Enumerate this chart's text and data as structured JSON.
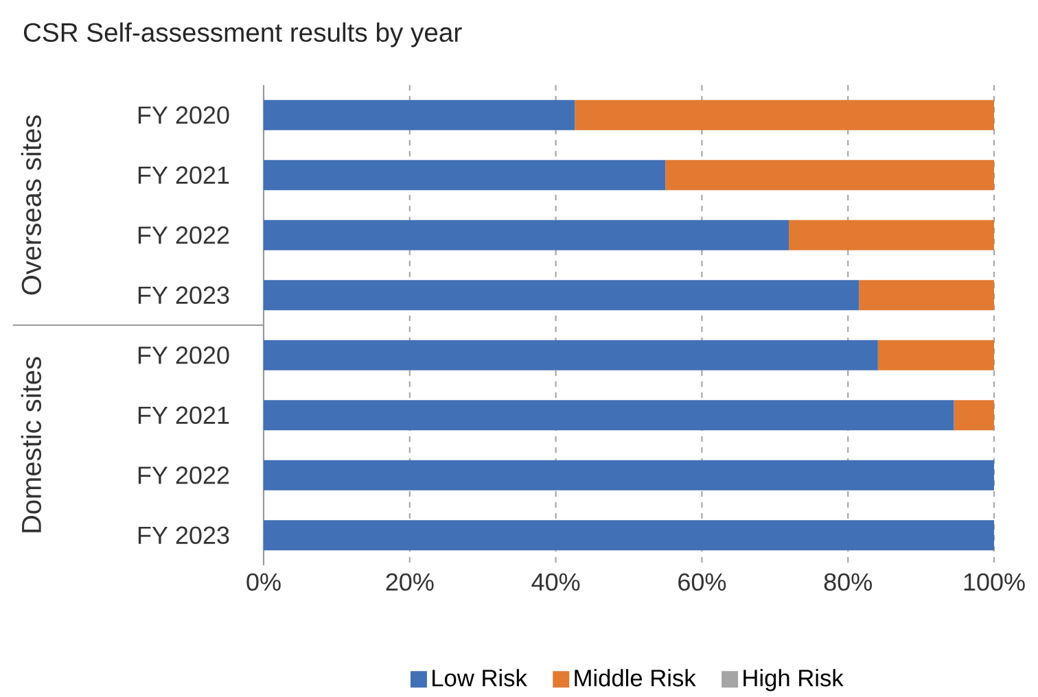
{
  "chart_data": {
    "type": "bar",
    "orientation": "horizontal",
    "stacked": true,
    "title": "CSR Self-assessment results by year",
    "categories": [
      "FY 2020",
      "FY 2021",
      "FY 2022",
      "FY 2023",
      "FY 2020",
      "FY 2021",
      "FY 2022",
      "FY 2023"
    ],
    "series": [
      {
        "name": "Low Risk",
        "color": "#4270b6",
        "values": [
          42.6,
          55.0,
          71.9,
          81.5,
          84.1,
          94.5,
          100,
          100
        ]
      },
      {
        "name": "Middle Risk",
        "color": "#e27a32",
        "values": [
          57.4,
          45.0,
          28.1,
          18.5,
          15.9,
          5.5,
          0,
          0
        ]
      },
      {
        "name": "High Risk",
        "color": "#a5a5a5",
        "values": [
          0,
          0,
          0,
          0,
          0,
          0,
          0,
          0
        ]
      }
    ],
    "xlim": [
      0,
      100
    ],
    "xticks": [
      {
        "value": 0,
        "label": "0%"
      },
      {
        "value": 20,
        "label": "20%"
      },
      {
        "value": 40,
        "label": "40%"
      },
      {
        "value": 60,
        "label": "60%"
      },
      {
        "value": 80,
        "label": "80%"
      },
      {
        "value": 100,
        "label": "100%"
      }
    ],
    "grid": "x",
    "legend": "bottom",
    "annotations": [
      "Overseas sites",
      "Domestic sites"
    ]
  }
}
